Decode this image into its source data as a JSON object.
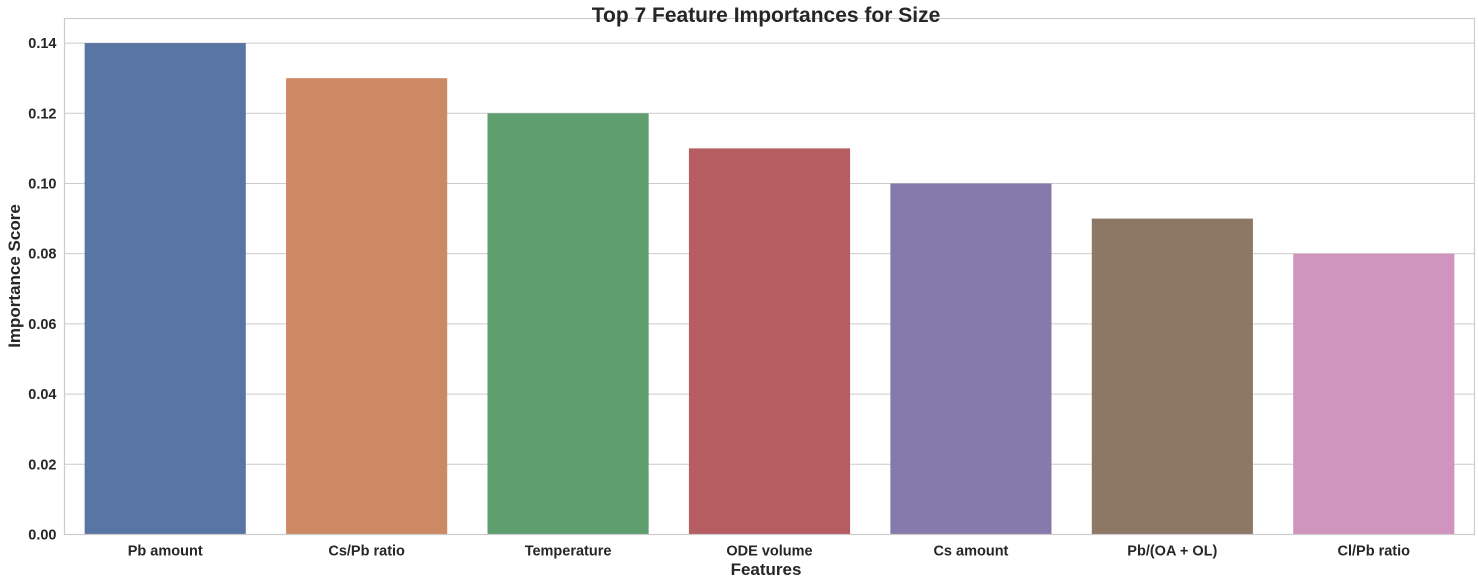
{
  "chart_data": {
    "type": "bar",
    "title": "Top 7 Feature Importances for Size",
    "xlabel": "Features",
    "ylabel": "Importance Score",
    "categories": [
      "Pb amount",
      "Cs/Pb ratio",
      "Temperature",
      "ODE volume",
      "Cs amount",
      "Pb/(OA + OL)",
      "Cl/Pb ratio"
    ],
    "values": [
      0.14,
      0.13,
      0.12,
      0.11,
      0.1,
      0.09,
      0.08
    ],
    "colors": [
      "#5875a4",
      "#cc8963",
      "#5f9e6e",
      "#b55d60",
      "#857aab",
      "#8d7866",
      "#d095bf"
    ],
    "ylim": [
      0,
      0.147
    ],
    "yticks": [
      "0.00",
      "0.02",
      "0.04",
      "0.06",
      "0.08",
      "0.10",
      "0.12",
      "0.14"
    ],
    "grid": "horizontal",
    "legend": "none"
  }
}
